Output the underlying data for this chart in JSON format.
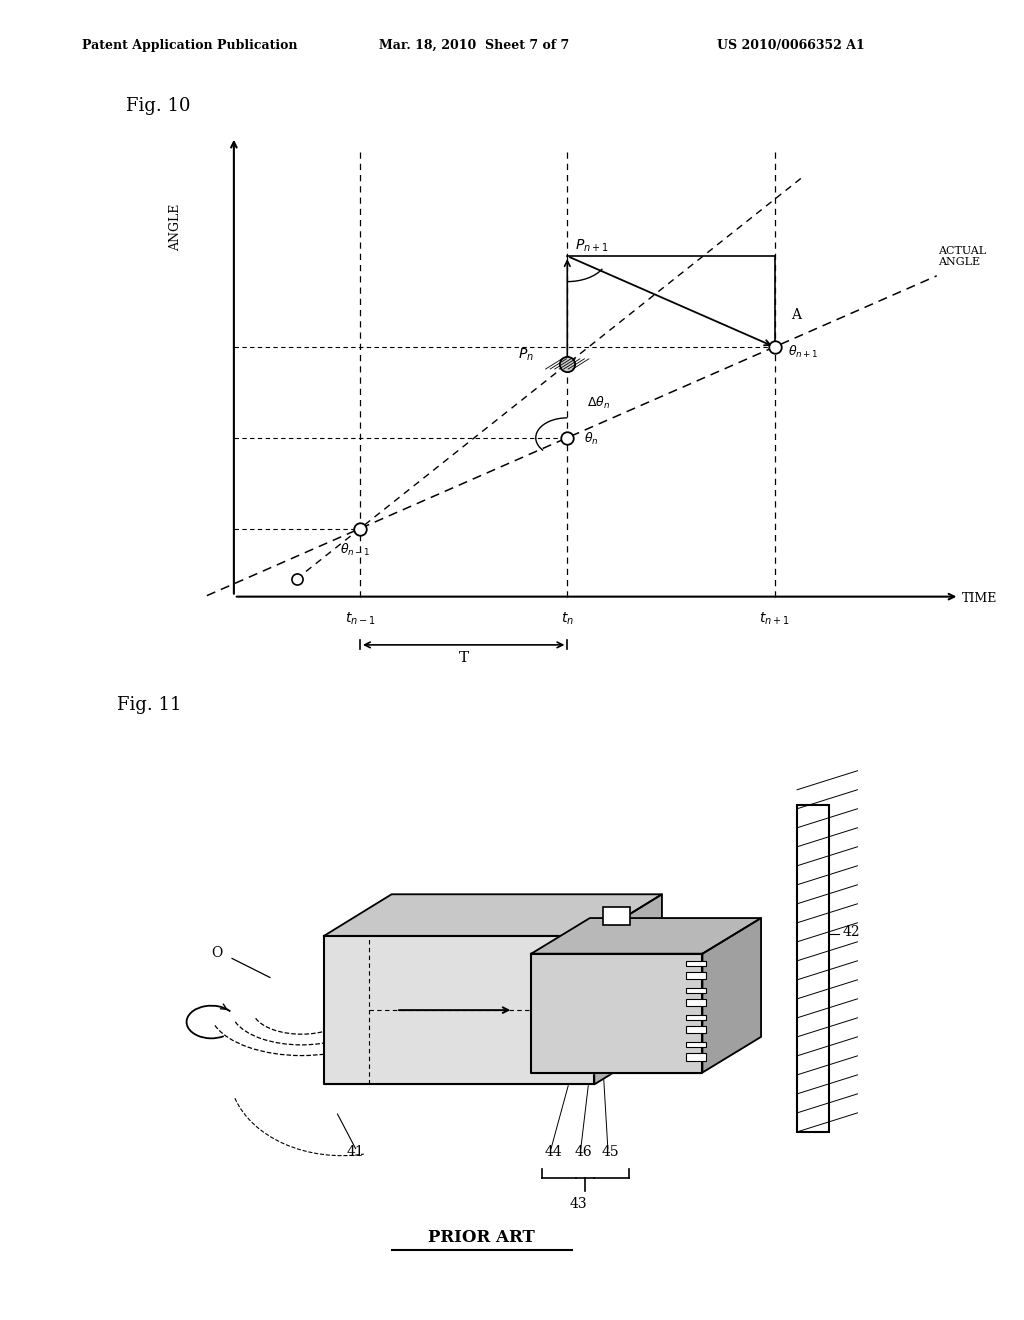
{
  "bg_color": "#ffffff",
  "header_left": "Patent Application Publication",
  "header_mid": "Mar. 18, 2010  Sheet 7 of 7",
  "header_right": "US 2010/0066352 A1",
  "fig10_label": "Fig. 10",
  "fig11_label": "Fig. 11",
  "prior_art_label": "PRIOR ART",
  "angle_label": "ANGLE",
  "time_label": "TIME",
  "actual_angle": "ACTUAL\nANGLE",
  "T_label": "T",
  "A_label": "A",
  "label_41": "41",
  "label_42": "42",
  "label_43": "43",
  "label_44": "44",
  "label_45": "45",
  "label_46": "46",
  "O_label": "O"
}
